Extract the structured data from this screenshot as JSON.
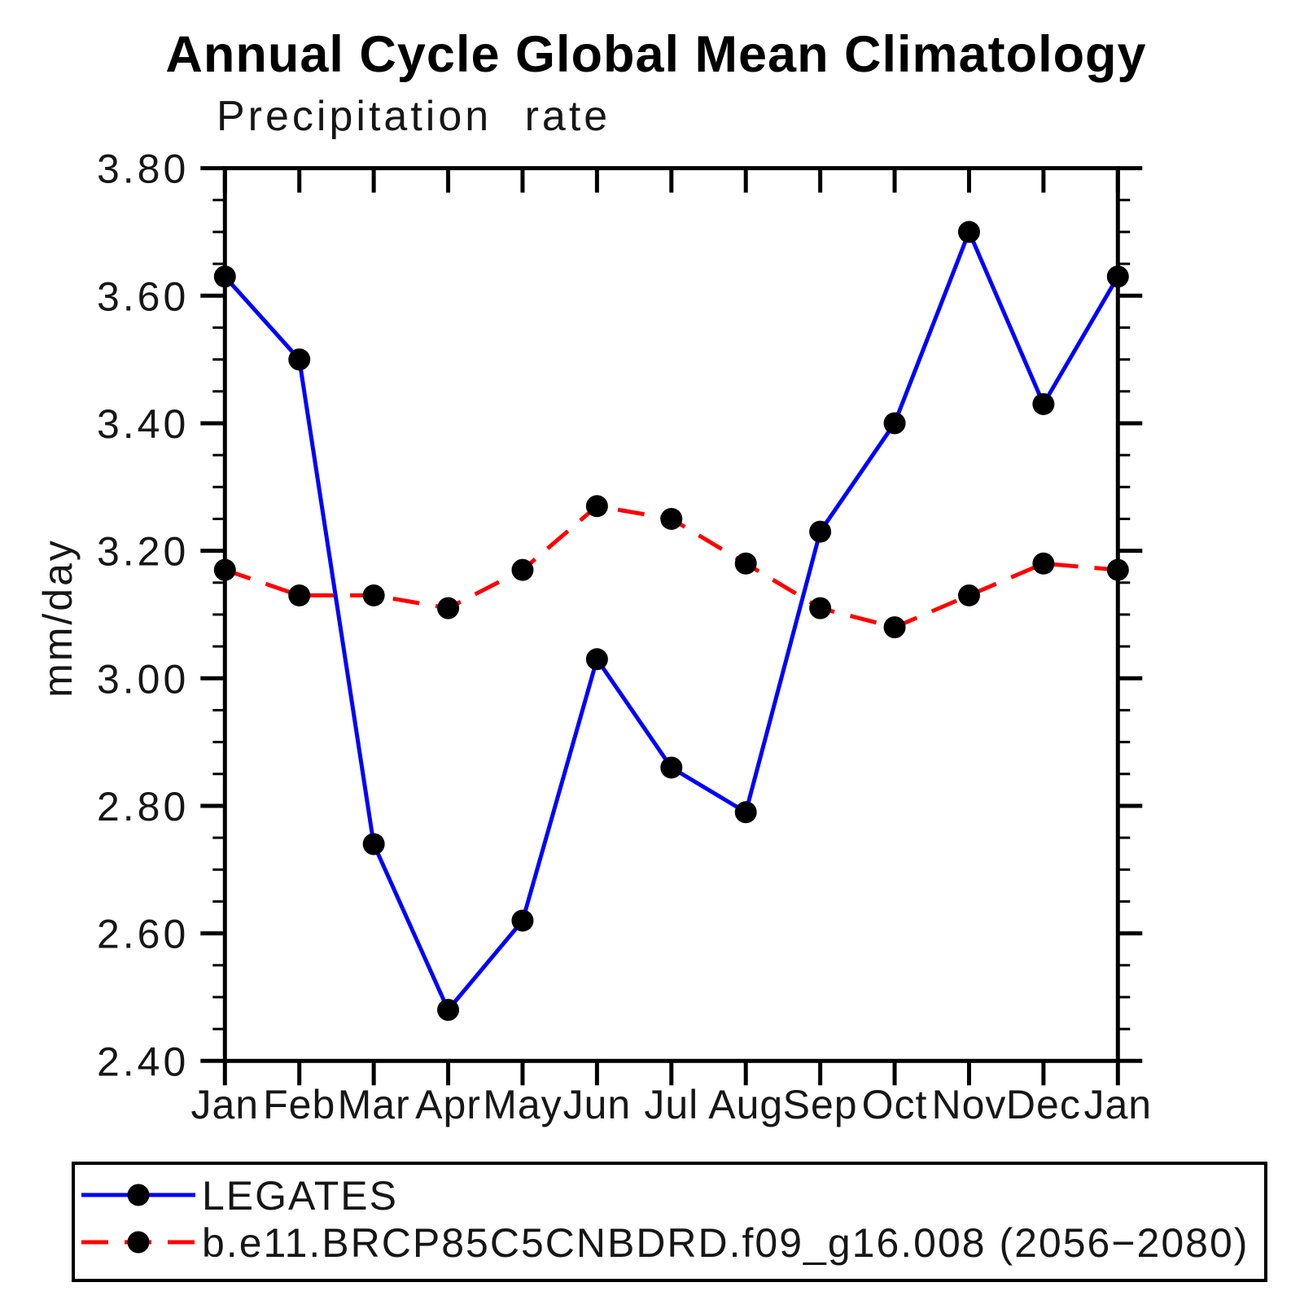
{
  "title": "Annual Cycle Global Mean Climatology",
  "subtitle": "Precipitation rate",
  "y_axis": {
    "label": "mm/day",
    "tick_labels": [
      "3.80",
      "3.60",
      "3.40",
      "3.20",
      "3.00",
      "2.80",
      "2.60",
      "2.40"
    ]
  },
  "x_axis": {
    "tick_labels": [
      "Jan",
      "Feb",
      "Mar",
      "Apr",
      "May",
      "Jun",
      "Jul",
      "Aug",
      "Sep",
      "Oct",
      "Nov",
      "Dec",
      "Jan"
    ]
  },
  "legend": {
    "entries": [
      "LEGATES",
      "b.e11.BRCP85C5CNBDRD.f09_g16.008 (2056−2080)"
    ]
  },
  "colors": {
    "legates_line": "#0000ff",
    "model_line": "#ff0000",
    "marker": "#000000",
    "axis": "#000000"
  },
  "chart_data": {
    "type": "line",
    "title": "Annual Cycle Global Mean Climatology",
    "subtitle": "Precipitation rate",
    "ylabel": "mm/day",
    "categories": [
      "Jan",
      "Feb",
      "Mar",
      "Apr",
      "May",
      "Jun",
      "Jul",
      "Aug",
      "Sep",
      "Oct",
      "Nov",
      "Dec",
      "Jan"
    ],
    "series": [
      {
        "name": "LEGATES",
        "color": "#0000ff",
        "line_style": "solid",
        "marker": "filled-circle",
        "marker_color": "#000000",
        "values": [
          3.63,
          3.5,
          2.74,
          2.48,
          2.62,
          3.03,
          2.86,
          2.79,
          3.23,
          3.4,
          3.7,
          3.43,
          3.63
        ]
      },
      {
        "name": "b.e11.BRCP85C5CNBDRD.f09_g16.008 (2056−2080)",
        "color": "#ff0000",
        "line_style": "dashed",
        "marker": "filled-circle",
        "marker_color": "#000000",
        "values": [
          3.17,
          3.13,
          3.13,
          3.11,
          3.17,
          3.27,
          3.25,
          3.18,
          3.11,
          3.08,
          3.13,
          3.18,
          3.17
        ]
      }
    ],
    "ylim": [
      2.4,
      3.8
    ],
    "y_major_step": 0.2,
    "y_minor_step": 0.05,
    "grid": false,
    "legend_position": "bottom"
  }
}
